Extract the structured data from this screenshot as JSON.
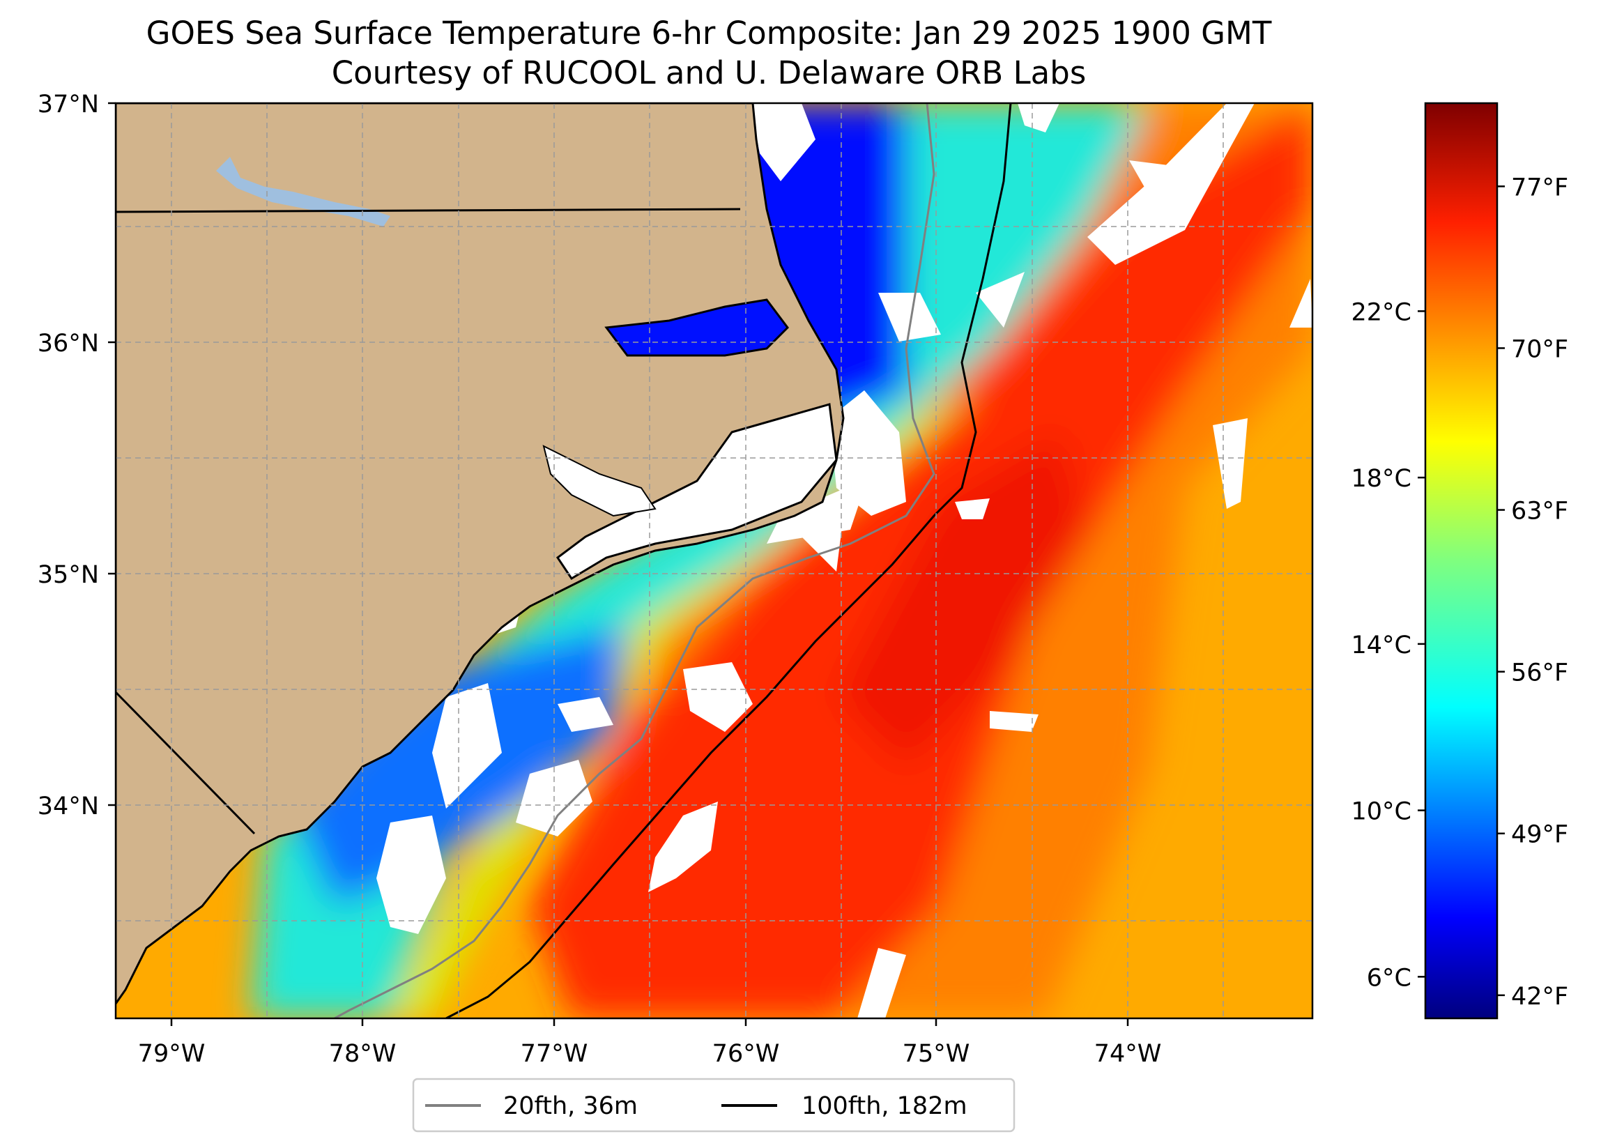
{
  "title_line1": "GOES Sea Surface Temperature 6-hr Composite: Jan 29 2025 1900 GMT",
  "title_line2": "Courtesy of RUCOOL and U. Delaware ORB Labs",
  "colors": {
    "land": "#d2b48c",
    "no_data": "#ffffff",
    "lake": "#9fbfdf",
    "grid": "#9a9a9a",
    "isobath_20fth": "#808080",
    "isobath_100fth": "#000000",
    "colormap": [
      "#00007f",
      "#0000ff",
      "#007fff",
      "#00ffff",
      "#7fff7f",
      "#ffff00",
      "#ff7f00",
      "#ff0000",
      "#7f0000"
    ]
  },
  "chart_data": {
    "type": "heatmap",
    "title": "GOES Sea Surface Temperature 6-hr Composite: Jan 29 2025 1900 GMT",
    "subtitle": "Courtesy of RUCOOL and U. Delaware ORB Labs",
    "map_extent": {
      "lon": [
        -79.3,
        -73.15
      ],
      "lat": [
        33.1,
        37.0
      ]
    },
    "x_ticks": [
      {
        "lon": -79,
        "label": "79°W"
      },
      {
        "lon": -78,
        "label": "78°W"
      },
      {
        "lon": -77,
        "label": "77°W"
      },
      {
        "lon": -76,
        "label": "76°W"
      },
      {
        "lon": -75,
        "label": "75°W"
      },
      {
        "lon": -74,
        "label": "74°W"
      }
    ],
    "y_ticks": [
      {
        "lat": 37,
        "label": "37°N"
      },
      {
        "lat": 36,
        "label": "36°N"
      },
      {
        "lat": 35,
        "label": "35°N"
      },
      {
        "lat": 34,
        "label": "34°N"
      }
    ],
    "grid": true,
    "colorbar": {
      "range_c": [
        5,
        27
      ],
      "celsius_ticks": [
        {
          "c": 6,
          "label": "6°C"
        },
        {
          "c": 10,
          "label": "10°C"
        },
        {
          "c": 14,
          "label": "14°C"
        },
        {
          "c": 18,
          "label": "18°C"
        },
        {
          "c": 22,
          "label": "22°C"
        }
      ],
      "fahrenheit_ticks": [
        {
          "f": 42,
          "label": "42°F"
        },
        {
          "f": 49,
          "label": "49°F"
        },
        {
          "f": 56,
          "label": "56°F"
        },
        {
          "f": 63,
          "label": "63°F"
        },
        {
          "f": 70,
          "label": "70°F"
        },
        {
          "f": 77,
          "label": "77°F"
        }
      ]
    },
    "legend": {
      "placement": "bottom-center",
      "entries": [
        {
          "label": "20fth, 36m",
          "color": "#808080"
        },
        {
          "label": "100fth, 182m",
          "color": "#000000"
        }
      ]
    }
  }
}
